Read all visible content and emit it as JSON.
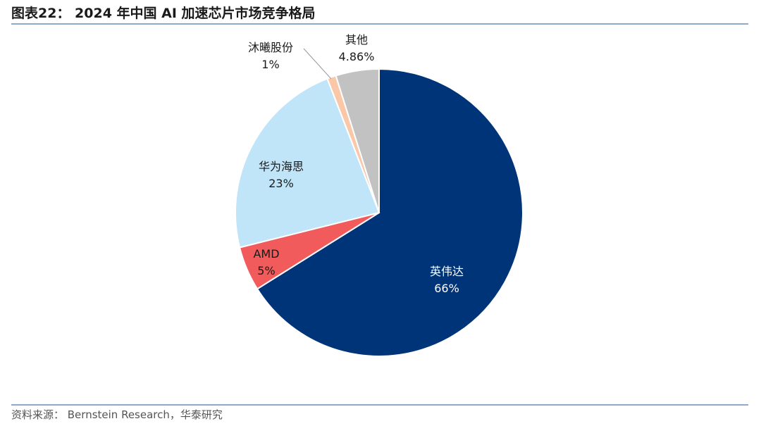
{
  "header": {
    "title": "图表22： 2024 年中国 AI 加速芯片市场竞争格局"
  },
  "footer": {
    "source": "资料来源： Bernstein Research，华泰研究"
  },
  "chart_data": {
    "type": "pie",
    "categories": [
      "英伟达",
      "AMD",
      "华为海思",
      "沐曦股份",
      "其他"
    ],
    "values": [
      66,
      5,
      23,
      1,
      4.86
    ],
    "data_labels": [
      "66%",
      "5%",
      "23%",
      "1%",
      "4.86%"
    ],
    "colors": [
      "#003478",
      "#f25b5b",
      "#c0e4f8",
      "#fac8a8",
      "#c2c2c2"
    ],
    "start_angle_deg": 0,
    "direction": "clockwise",
    "legend": "none"
  }
}
